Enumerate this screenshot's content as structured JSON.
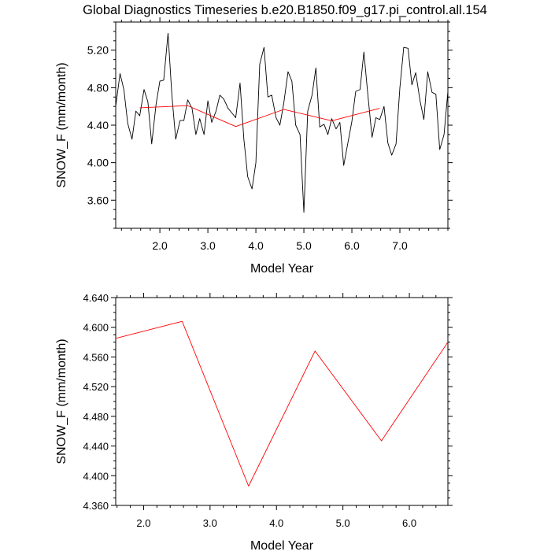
{
  "title": "Global Diagnostics Timeseries b.e20.B1850.f09_g17.pi_control.all.154",
  "chart_data": [
    {
      "type": "line",
      "xlabel": "Model Year",
      "ylabel": "SNOW_F (mm/month)",
      "xlim": [
        1.08,
        8.0
      ],
      "ylim": [
        3.3,
        5.5
      ],
      "xticks": [
        "2.0",
        "3.0",
        "4.0",
        "5.0",
        "6.0",
        "7.0"
      ],
      "yticks": [
        "3.60",
        "4.00",
        "4.40",
        "4.80",
        "5.20"
      ],
      "series": [
        {
          "color": "#000000",
          "x": [
            1.08,
            1.17,
            1.25,
            1.33,
            1.42,
            1.5,
            1.58,
            1.67,
            1.75,
            1.83,
            1.92,
            2.0,
            2.08,
            2.17,
            2.25,
            2.33,
            2.42,
            2.5,
            2.58,
            2.67,
            2.75,
            2.83,
            2.92,
            3.0,
            3.08,
            3.17,
            3.25,
            3.33,
            3.42,
            3.5,
            3.58,
            3.67,
            3.75,
            3.83,
            3.92,
            4.0,
            4.08,
            4.17,
            4.25,
            4.33,
            4.42,
            4.5,
            4.58,
            4.67,
            4.75,
            4.83,
            4.92,
            5.0,
            5.08,
            5.17,
            5.25,
            5.33,
            5.42,
            5.5,
            5.58,
            5.67,
            5.75,
            5.83,
            5.92,
            6.0,
            6.08,
            6.17,
            6.25,
            6.33,
            6.42,
            6.5,
            6.58,
            6.67,
            6.75,
            6.83,
            6.92,
            7.0,
            7.08,
            7.17,
            7.25,
            7.33,
            7.42,
            7.5,
            7.58,
            7.67,
            7.75,
            7.83,
            7.92,
            8.0
          ],
          "y": [
            4.6,
            4.95,
            4.78,
            4.42,
            4.25,
            4.55,
            4.5,
            4.78,
            4.65,
            4.2,
            4.62,
            4.87,
            4.88,
            5.38,
            4.72,
            4.25,
            4.45,
            4.45,
            4.67,
            4.58,
            4.3,
            4.47,
            4.3,
            4.66,
            4.43,
            4.55,
            4.72,
            4.68,
            4.58,
            4.53,
            4.48,
            4.85,
            4.25,
            3.85,
            3.72,
            4.0,
            5.05,
            5.23,
            4.7,
            4.72,
            4.48,
            4.4,
            4.63,
            4.97,
            4.87,
            4.4,
            4.3,
            3.47,
            4.55,
            4.72,
            5.01,
            4.38,
            4.41,
            4.3,
            4.47,
            4.36,
            4.43,
            3.97,
            4.22,
            4.44,
            4.76,
            4.78,
            5.18,
            4.74,
            4.27,
            4.48,
            4.46,
            4.6,
            4.21,
            4.08,
            4.2,
            4.8,
            5.23,
            5.22,
            4.83,
            4.96,
            4.66,
            4.46,
            4.97,
            4.75,
            4.73,
            4.14,
            4.3,
            4.76
          ]
        },
        {
          "color": "#ff0000",
          "x": [
            1.58,
            2.58,
            3.58,
            4.58,
            5.58,
            6.58
          ],
          "y": [
            4.585,
            4.608,
            4.386,
            4.568,
            4.447,
            4.58
          ]
        }
      ]
    },
    {
      "type": "line",
      "xlabel": "Model Year",
      "ylabel": "SNOW_F (mm/month)",
      "xlim": [
        1.58,
        6.58
      ],
      "ylim": [
        4.36,
        4.64
      ],
      "xticks": [
        "2.0",
        "3.0",
        "4.0",
        "5.0",
        "6.0"
      ],
      "yticks": [
        "4.360",
        "4.400",
        "4.440",
        "4.480",
        "4.520",
        "4.560",
        "4.600",
        "4.640"
      ],
      "series": [
        {
          "color": "#ff0000",
          "x": [
            1.58,
            2.58,
            3.58,
            4.58,
            5.58,
            6.58
          ],
          "y": [
            4.585,
            4.608,
            4.386,
            4.568,
            4.447,
            4.58
          ]
        }
      ]
    }
  ]
}
